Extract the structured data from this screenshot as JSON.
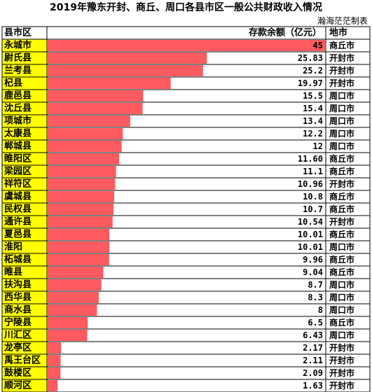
{
  "header": {
    "title": "2019年豫东开封、商丘、周口各县市区一般公共财政收入情况",
    "credit": "瀚海茫茫制表",
    "col_county": "县市区",
    "col_value": "存款余额（亿元）",
    "col_city": "地市"
  },
  "colors": {
    "bar": "#ff5a5f",
    "county_bg": "#ffff00",
    "grid": "#000000",
    "sep": "#cfcfcf"
  },
  "chart_data": {
    "type": "bar",
    "orientation": "horizontal",
    "title": "2019年豫东开封、商丘、周口各县市区一般公共财政收入情况",
    "ylabel": "存款余额（亿元）",
    "xlim": [
      0,
      45
    ],
    "categories": [
      "永城市",
      "尉氏县",
      "兰考县",
      "杞县",
      "鹿邑县",
      "沈丘县",
      "项城市",
      "太康县",
      "郸城县",
      "睢阳区",
      "梁园区",
      "祥符区",
      "虞城县",
      "民权县",
      "通许县",
      "夏邑县",
      "淮阳",
      "柘城县",
      "睢县",
      "扶沟县",
      "西华县",
      "商水县",
      "宁陵县",
      "川汇区",
      "龙亭区",
      "禹王台区",
      "鼓楼区",
      "顺河区"
    ],
    "values": [
      45,
      25.83,
      25.2,
      19.97,
      15.5,
      15.4,
      13.4,
      12.2,
      12,
      11.6,
      11.1,
      10.96,
      10.8,
      10.7,
      10.54,
      10.01,
      10.01,
      9.96,
      9.04,
      8.7,
      8.3,
      8,
      6.5,
      6.43,
      2.17,
      2.11,
      2.09,
      1.63
    ],
    "value_labels": [
      "45",
      "25.83",
      "25.2",
      "19.97",
      "15.5",
      "15.4",
      "13.4",
      "12.2",
      "12",
      "11.60",
      "11.1",
      "10.96",
      "10.8",
      "10.7",
      "10.54",
      "10.01",
      "10.01",
      "9.96",
      "9.04",
      "8.7",
      "8.3",
      "8",
      "6.5",
      "6.43",
      "2.17",
      "2.11",
      "2.09",
      "1.63"
    ],
    "cities": [
      "商丘市",
      "开封市",
      "开封市",
      "开封市",
      "周口市",
      "周口市",
      "周口市",
      "周口市",
      "周口市",
      "商丘市",
      "商丘市",
      "开封市",
      "商丘市",
      "商丘市",
      "开封市",
      "商丘市",
      "周口市",
      "商丘市",
      "商丘市",
      "周口市",
      "周口市",
      "周口市",
      "商丘市",
      "周口市",
      "开封市",
      "开封市",
      "开封市",
      "开封市"
    ]
  }
}
